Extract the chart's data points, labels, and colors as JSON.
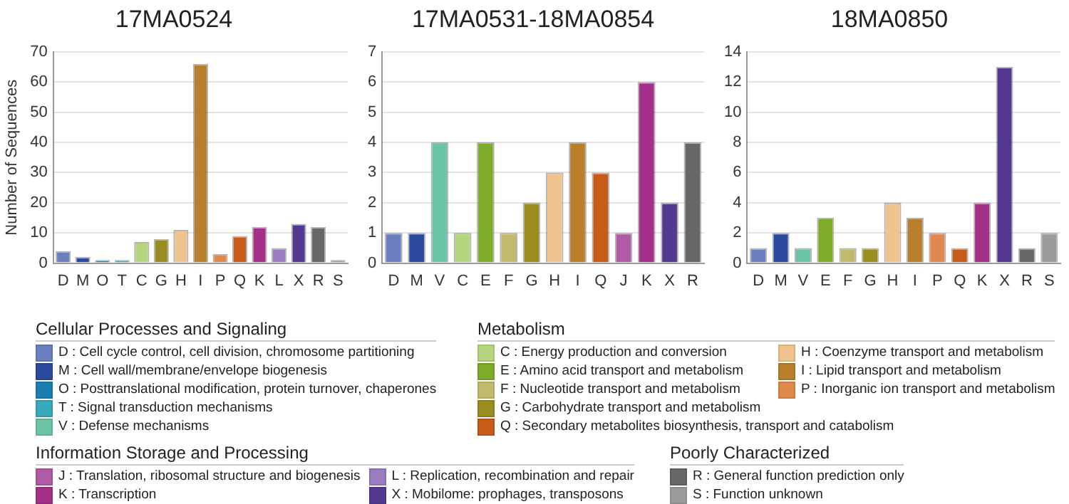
{
  "chart_data": [
    {
      "type": "bar",
      "title": "17MA0524",
      "ylabel": "Number of Sequences",
      "categories": [
        "D",
        "M",
        "O",
        "T",
        "C",
        "G",
        "H",
        "I",
        "P",
        "Q",
        "K",
        "L",
        "X",
        "R",
        "S"
      ],
      "values": [
        4,
        2,
        1,
        1,
        7,
        8,
        11,
        66,
        3,
        9,
        12,
        5,
        13,
        12,
        1
      ],
      "colors": [
        "#6b7fc0",
        "#2b4a9e",
        "#1a7fb0",
        "#3aaabb",
        "#b5d67e",
        "#9a8c1e",
        "#f0c48e",
        "#b8802a",
        "#e0884e",
        "#c85a1a",
        "#a4308a",
        "#9a7cc0",
        "#533a90",
        "#676767",
        "#9c9c9c"
      ],
      "ylim": [
        0,
        70
      ],
      "yticks": [
        0,
        10,
        20,
        30,
        40,
        50,
        60,
        70
      ],
      "grid": "y"
    },
    {
      "type": "bar",
      "title": "17MA0531-18MA0854",
      "categories": [
        "D",
        "M",
        "V",
        "C",
        "E",
        "F",
        "G",
        "H",
        "I",
        "Q",
        "J",
        "K",
        "X",
        "R"
      ],
      "values": [
        1,
        1,
        4,
        1,
        4,
        1,
        2,
        3,
        4,
        3,
        1,
        6,
        2,
        4
      ],
      "colors": [
        "#6b7fc0",
        "#2b4a9e",
        "#6cc4a8",
        "#b5d67e",
        "#7fab2a",
        "#c0bb6c",
        "#9a8c1e",
        "#f0c48e",
        "#b8802a",
        "#c85a1a",
        "#b05aa8",
        "#a4308a",
        "#533a90",
        "#676767"
      ],
      "ylim": [
        0,
        7
      ],
      "yticks": [
        0,
        1,
        2,
        3,
        4,
        5,
        6,
        7
      ],
      "grid": "y"
    },
    {
      "type": "bar",
      "title": "18MA0850",
      "categories": [
        "D",
        "M",
        "V",
        "E",
        "F",
        "G",
        "H",
        "I",
        "P",
        "Q",
        "K",
        "X",
        "R",
        "S"
      ],
      "values": [
        1,
        2,
        1,
        3,
        1,
        1,
        4,
        3,
        2,
        1,
        4,
        13,
        1,
        2
      ],
      "colors": [
        "#6b7fc0",
        "#2b4a9e",
        "#6cc4a8",
        "#7fab2a",
        "#c0bb6c",
        "#9a8c1e",
        "#f0c48e",
        "#b8802a",
        "#e0884e",
        "#c85a1a",
        "#a4308a",
        "#533a90",
        "#676767",
        "#9c9c9c"
      ],
      "ylim": [
        0,
        14
      ],
      "yticks": [
        0,
        2,
        4,
        6,
        8,
        10,
        12,
        14
      ],
      "grid": "y"
    },
    {
      "type": "other",
      "title": "Cellular Processes and Signaling",
      "categories": [
        "D : Cell cycle control, cell division, chromosome partitioning",
        "M : Cell wall/membrane/envelope biogenesis",
        "O : Posttranslational modification, protein turnover, chaperones",
        "T : Signal transduction mechanisms",
        "V : Defense mechanisms"
      ],
      "colors": [
        "#6b7fc0",
        "#2b4a9e",
        "#1a7fb0",
        "#3aaabb",
        "#6cc4a8"
      ]
    },
    {
      "type": "other",
      "title": "Metabolism",
      "categories": [
        "C : Energy production and conversion",
        "E : Amino acid transport and metabolism",
        "F : Nucleotide transport and metabolism",
        "G : Carbohydrate transport and metabolism",
        "Q : Secondary metabolites biosynthesis, transport and catabolism",
        "H : Coenzyme transport and metabolism",
        "I : Lipid transport and metabolism",
        "P : Inorganic ion transport and metabolism"
      ],
      "colors": [
        "#b5d67e",
        "#7fab2a",
        "#c0bb6c",
        "#9a8c1e",
        "#c85a1a",
        "#f0c48e",
        "#b8802a",
        "#e0884e"
      ]
    },
    {
      "type": "other",
      "title": "Information Storage and Processing",
      "categories": [
        "J : Translation, ribosomal structure and biogenesis",
        "K : Transcription",
        "L : Replication, recombination and repair",
        "X : Mobilome: prophages, transposons"
      ],
      "colors": [
        "#b05aa8",
        "#a4308a",
        "#9a7cc0",
        "#533a90"
      ]
    },
    {
      "type": "other",
      "title": "Poorly Characterized",
      "categories": [
        "R : General function prediction only",
        "S : Function unknown"
      ],
      "colors": [
        "#676767",
        "#9c9c9c"
      ]
    }
  ]
}
